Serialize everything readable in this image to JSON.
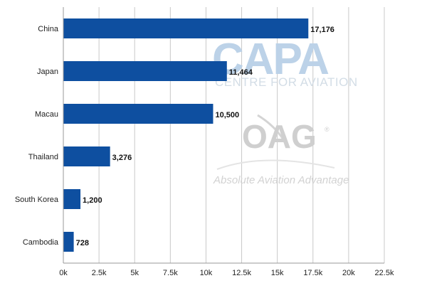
{
  "chart_data": {
    "type": "bar",
    "orientation": "horizontal",
    "categories": [
      "China",
      "Japan",
      "Macau",
      "Thailand",
      "South Korea",
      "Cambodia"
    ],
    "values": [
      17176,
      11464,
      10500,
      3276,
      1200,
      728
    ],
    "value_labels": [
      "17,176",
      "11,464",
      "10,500",
      "3,276",
      "1,200",
      "728"
    ],
    "xlim": [
      0,
      22500
    ],
    "x_ticks": [
      0,
      2500,
      5000,
      7500,
      10000,
      12500,
      15000,
      17500,
      20000,
      22500
    ],
    "x_tick_labels": [
      "0k",
      "2.5k",
      "5k",
      "7.5k",
      "10k",
      "12.5k",
      "15k",
      "17.5k",
      "20k",
      "22.5k"
    ],
    "grid": true,
    "bar_color": "#0e4fa0",
    "title": "",
    "xlabel": "",
    "ylabel": ""
  },
  "watermarks": {
    "capa_logo": "CAPA",
    "capa_sub": "CENTRE FOR AVIATION",
    "oag_logo": "OAG",
    "oag_tagline": "Absolute Aviation Advantage",
    "capa_color": "#bcd2e8",
    "oag_color": "#cfcfcf"
  }
}
